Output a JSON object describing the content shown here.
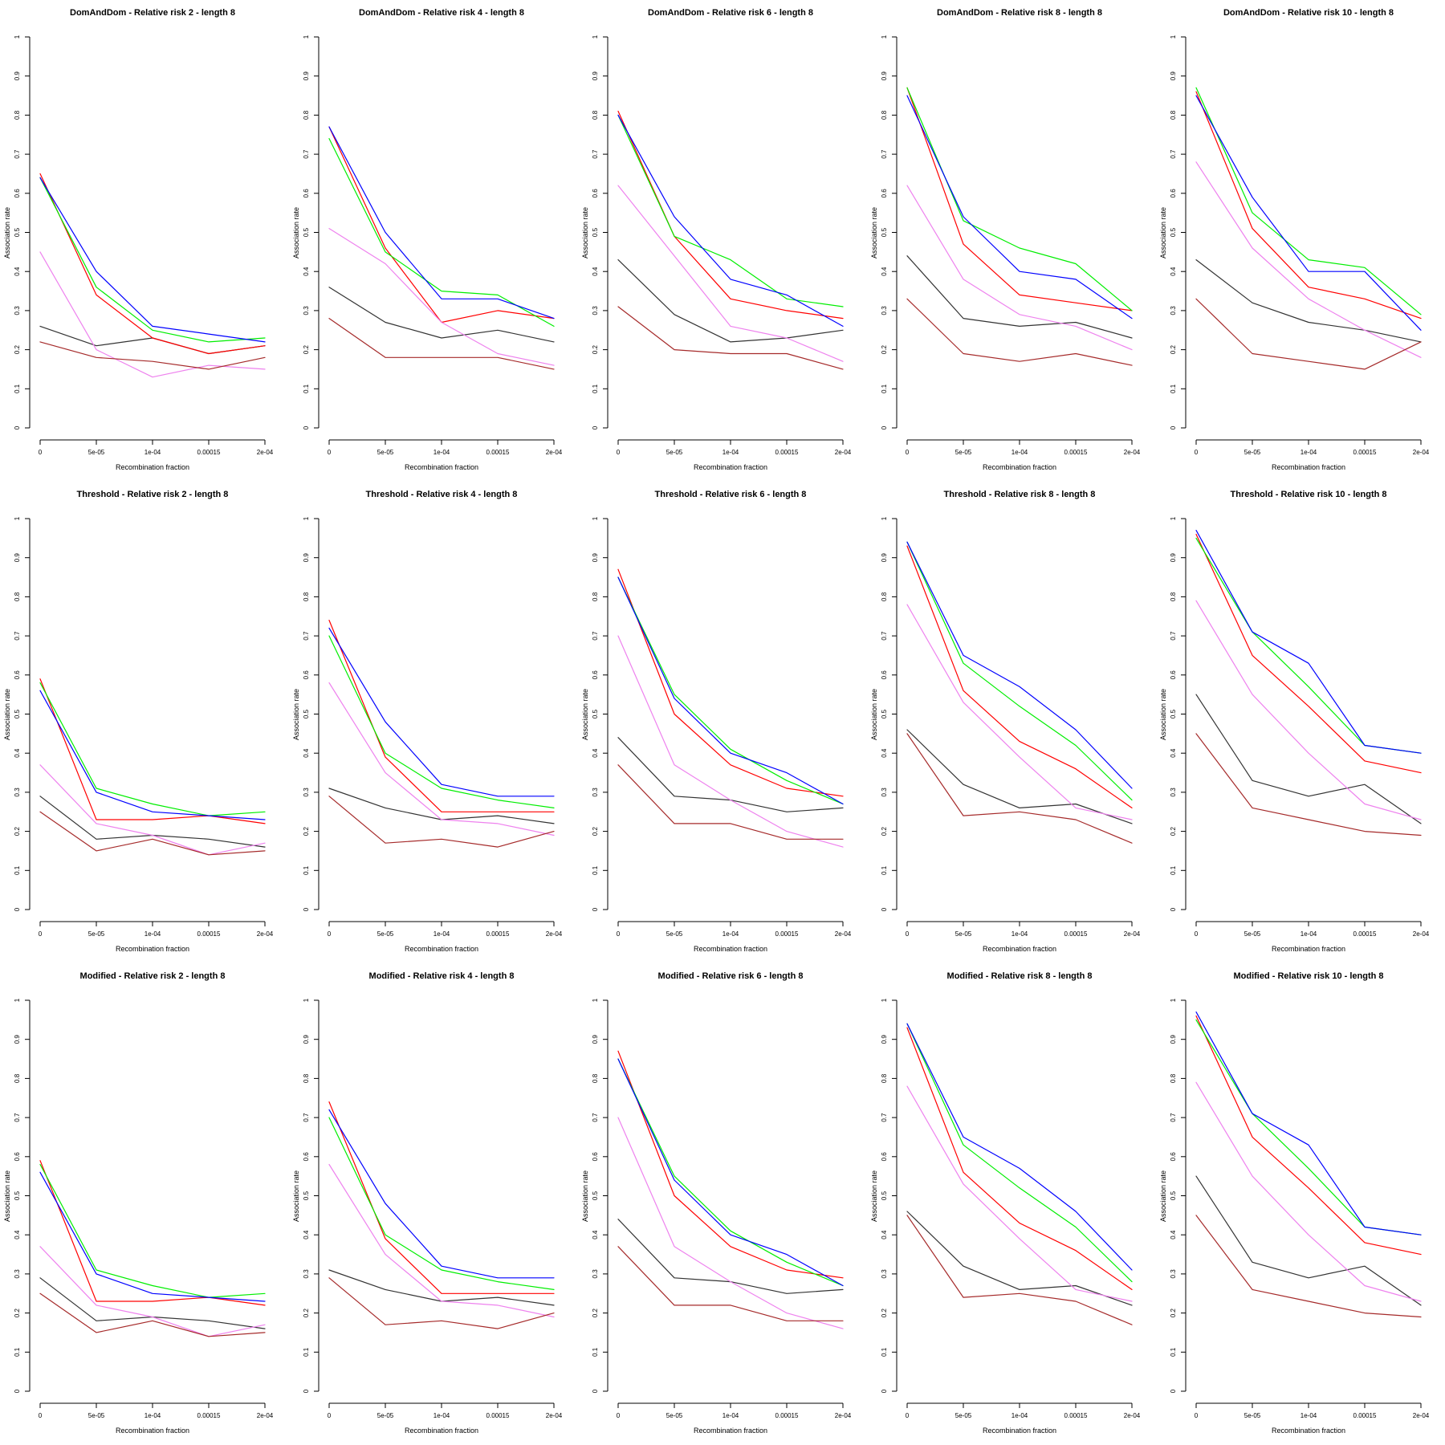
{
  "figure": {
    "xlabel": "Recombination fraction",
    "ylabel": "Association rate",
    "x_values": [
      0,
      5e-05,
      0.0001,
      0.00015,
      0.0002
    ],
    "x_tick_labels": [
      "0",
      "5e-05",
      "1e-04",
      "0.00015",
      "2e-04"
    ],
    "y_tick_labels": [
      "0",
      "0.1",
      "0.2",
      "0.3",
      "0.4",
      "0.5",
      "0.6",
      "0.7",
      "0.8",
      "0.9",
      "1"
    ],
    "ylim": [
      0,
      1
    ],
    "grid": "off",
    "legend": "none",
    "series_order": [
      "black",
      "red",
      "green",
      "blue",
      "violet",
      "brown"
    ],
    "palette": {
      "black": "#333333",
      "red": "#FF0000",
      "green": "#00EE00",
      "blue": "#0000FF",
      "violet": "#EE82EE",
      "brown": "#A52A2A"
    }
  },
  "chart_data": [
    {
      "type": "line",
      "title": "DomAndDom  - Relative risk 2 - length 8",
      "method": "DomAndDom",
      "relative_risk": 2,
      "length": 8,
      "series": {
        "black": [
          0.26,
          0.21,
          0.23,
          0.19,
          0.21
        ],
        "red": [
          0.65,
          0.34,
          0.23,
          0.19,
          0.21
        ],
        "green": [
          0.64,
          0.36,
          0.25,
          0.22,
          0.23
        ],
        "blue": [
          0.64,
          0.4,
          0.26,
          0.24,
          0.22
        ],
        "violet": [
          0.45,
          0.2,
          0.13,
          0.16,
          0.15
        ],
        "brown": [
          0.22,
          0.18,
          0.17,
          0.15,
          0.18
        ]
      }
    },
    {
      "type": "line",
      "title": "DomAndDom  - Relative risk 4 - length 8",
      "method": "DomAndDom",
      "relative_risk": 4,
      "length": 8,
      "series": {
        "black": [
          0.36,
          0.27,
          0.23,
          0.25,
          0.22
        ],
        "red": [
          0.77,
          0.46,
          0.27,
          0.3,
          0.28
        ],
        "green": [
          0.74,
          0.45,
          0.35,
          0.34,
          0.26
        ],
        "blue": [
          0.77,
          0.5,
          0.33,
          0.33,
          0.28
        ],
        "violet": [
          0.51,
          0.42,
          0.27,
          0.19,
          0.16
        ],
        "brown": [
          0.28,
          0.18,
          0.18,
          0.18,
          0.15
        ]
      }
    },
    {
      "type": "line",
      "title": "DomAndDom  - Relative risk 6 - length 8",
      "method": "DomAndDom",
      "relative_risk": 6,
      "length": 8,
      "series": {
        "black": [
          0.43,
          0.29,
          0.22,
          0.23,
          0.25
        ],
        "red": [
          0.81,
          0.49,
          0.33,
          0.3,
          0.28
        ],
        "green": [
          0.8,
          0.49,
          0.43,
          0.33,
          0.31
        ],
        "blue": [
          0.8,
          0.54,
          0.38,
          0.34,
          0.26
        ],
        "violet": [
          0.62,
          0.44,
          0.26,
          0.23,
          0.17
        ],
        "brown": [
          0.31,
          0.2,
          0.19,
          0.19,
          0.15
        ]
      }
    },
    {
      "type": "line",
      "title": "DomAndDom  - Relative risk 8 - length 8",
      "method": "DomAndDom",
      "relative_risk": 8,
      "length": 8,
      "series": {
        "black": [
          0.44,
          0.28,
          0.26,
          0.27,
          0.23
        ],
        "red": [
          0.87,
          0.47,
          0.34,
          0.32,
          0.3
        ],
        "green": [
          0.87,
          0.53,
          0.46,
          0.42,
          0.3
        ],
        "blue": [
          0.85,
          0.54,
          0.4,
          0.38,
          0.28
        ],
        "violet": [
          0.62,
          0.38,
          0.29,
          0.26,
          0.2
        ],
        "brown": [
          0.33,
          0.19,
          0.17,
          0.19,
          0.16
        ]
      }
    },
    {
      "type": "line",
      "title": "DomAndDom  - Relative risk 10 - length 8",
      "method": "DomAndDom",
      "relative_risk": 10,
      "length": 8,
      "series": {
        "black": [
          0.43,
          0.32,
          0.27,
          0.25,
          0.22
        ],
        "red": [
          0.86,
          0.51,
          0.36,
          0.33,
          0.28
        ],
        "green": [
          0.87,
          0.55,
          0.43,
          0.41,
          0.29
        ],
        "blue": [
          0.85,
          0.59,
          0.4,
          0.4,
          0.25
        ],
        "violet": [
          0.68,
          0.46,
          0.33,
          0.25,
          0.18
        ],
        "brown": [
          0.33,
          0.19,
          0.17,
          0.15,
          0.22
        ]
      }
    },
    {
      "type": "line",
      "title": "Threshold  - Relative risk 2 - length 8",
      "method": "Threshold",
      "relative_risk": 2,
      "length": 8,
      "series": {
        "black": [
          0.29,
          0.18,
          0.19,
          0.18,
          0.16
        ],
        "red": [
          0.59,
          0.23,
          0.23,
          0.24,
          0.22
        ],
        "green": [
          0.58,
          0.31,
          0.27,
          0.24,
          0.25
        ],
        "blue": [
          0.56,
          0.3,
          0.25,
          0.24,
          0.23
        ],
        "violet": [
          0.37,
          0.22,
          0.19,
          0.14,
          0.17
        ],
        "brown": [
          0.25,
          0.15,
          0.18,
          0.14,
          0.15
        ]
      }
    },
    {
      "type": "line",
      "title": "Threshold  - Relative risk 4 - length 8",
      "method": "Threshold",
      "relative_risk": 4,
      "length": 8,
      "series": {
        "black": [
          0.31,
          0.26,
          0.23,
          0.24,
          0.22
        ],
        "red": [
          0.74,
          0.39,
          0.25,
          0.25,
          0.25
        ],
        "green": [
          0.7,
          0.4,
          0.31,
          0.28,
          0.26
        ],
        "blue": [
          0.72,
          0.48,
          0.32,
          0.29,
          0.29
        ],
        "violet": [
          0.58,
          0.35,
          0.23,
          0.22,
          0.19
        ],
        "brown": [
          0.29,
          0.17,
          0.18,
          0.16,
          0.2
        ]
      }
    },
    {
      "type": "line",
      "title": "Threshold  - Relative risk 6 - length 8",
      "method": "Threshold",
      "relative_risk": 6,
      "length": 8,
      "series": {
        "black": [
          0.44,
          0.29,
          0.28,
          0.25,
          0.26
        ],
        "red": [
          0.87,
          0.5,
          0.37,
          0.31,
          0.29
        ],
        "green": [
          0.85,
          0.55,
          0.41,
          0.33,
          0.27
        ],
        "blue": [
          0.85,
          0.54,
          0.4,
          0.35,
          0.27
        ],
        "violet": [
          0.7,
          0.37,
          0.28,
          0.2,
          0.16
        ],
        "brown": [
          0.37,
          0.22,
          0.22,
          0.18,
          0.18
        ]
      }
    },
    {
      "type": "line",
      "title": "Threshold  - Relative risk 8 - length 8",
      "method": "Threshold",
      "relative_risk": 8,
      "length": 8,
      "series": {
        "black": [
          0.46,
          0.32,
          0.26,
          0.27,
          0.22
        ],
        "red": [
          0.93,
          0.56,
          0.43,
          0.36,
          0.26
        ],
        "green": [
          0.94,
          0.63,
          0.52,
          0.42,
          0.28
        ],
        "blue": [
          0.94,
          0.65,
          0.57,
          0.46,
          0.31
        ],
        "violet": [
          0.78,
          0.53,
          0.39,
          0.26,
          0.23
        ],
        "brown": [
          0.45,
          0.24,
          0.25,
          0.23,
          0.17
        ]
      }
    },
    {
      "type": "line",
      "title": "Threshold  - Relative risk 10 - length 8",
      "method": "Threshold",
      "relative_risk": 10,
      "length": 8,
      "series": {
        "black": [
          0.55,
          0.33,
          0.29,
          0.32,
          0.22
        ],
        "red": [
          0.96,
          0.65,
          0.52,
          0.38,
          0.35
        ],
        "green": [
          0.95,
          0.71,
          0.57,
          0.42,
          0.4
        ],
        "blue": [
          0.97,
          0.71,
          0.63,
          0.42,
          0.4
        ],
        "violet": [
          0.79,
          0.55,
          0.4,
          0.27,
          0.23
        ],
        "brown": [
          0.45,
          0.26,
          0.23,
          0.2,
          0.19
        ]
      }
    },
    {
      "type": "line",
      "title": "Modified  - Relative risk 2 - length 8",
      "method": "Modified",
      "relative_risk": 2,
      "length": 8,
      "series": {
        "black": [
          0.29,
          0.18,
          0.19,
          0.18,
          0.16
        ],
        "red": [
          0.59,
          0.23,
          0.23,
          0.24,
          0.22
        ],
        "green": [
          0.58,
          0.31,
          0.27,
          0.24,
          0.25
        ],
        "blue": [
          0.56,
          0.3,
          0.25,
          0.24,
          0.23
        ],
        "violet": [
          0.37,
          0.22,
          0.19,
          0.14,
          0.17
        ],
        "brown": [
          0.25,
          0.15,
          0.18,
          0.14,
          0.15
        ]
      }
    },
    {
      "type": "line",
      "title": "Modified  - Relative risk 4 - length 8",
      "method": "Modified",
      "relative_risk": 4,
      "length": 8,
      "series": {
        "black": [
          0.31,
          0.26,
          0.23,
          0.24,
          0.22
        ],
        "red": [
          0.74,
          0.39,
          0.25,
          0.25,
          0.25
        ],
        "green": [
          0.7,
          0.4,
          0.31,
          0.28,
          0.26
        ],
        "blue": [
          0.72,
          0.48,
          0.32,
          0.29,
          0.29
        ],
        "violet": [
          0.58,
          0.35,
          0.23,
          0.22,
          0.19
        ],
        "brown": [
          0.29,
          0.17,
          0.18,
          0.16,
          0.2
        ]
      }
    },
    {
      "type": "line",
      "title": "Modified  - Relative risk 6 - length 8",
      "method": "Modified",
      "relative_risk": 6,
      "length": 8,
      "series": {
        "black": [
          0.44,
          0.29,
          0.28,
          0.25,
          0.26
        ],
        "red": [
          0.87,
          0.5,
          0.37,
          0.31,
          0.29
        ],
        "green": [
          0.85,
          0.55,
          0.41,
          0.33,
          0.27
        ],
        "blue": [
          0.85,
          0.54,
          0.4,
          0.35,
          0.27
        ],
        "violet": [
          0.7,
          0.37,
          0.28,
          0.2,
          0.16
        ],
        "brown": [
          0.37,
          0.22,
          0.22,
          0.18,
          0.18
        ]
      }
    },
    {
      "type": "line",
      "title": "Modified  - Relative risk 8 - length 8",
      "method": "Modified",
      "relative_risk": 8,
      "length": 8,
      "series": {
        "black": [
          0.46,
          0.32,
          0.26,
          0.27,
          0.22
        ],
        "red": [
          0.93,
          0.56,
          0.43,
          0.36,
          0.26
        ],
        "green": [
          0.94,
          0.63,
          0.52,
          0.42,
          0.28
        ],
        "blue": [
          0.94,
          0.65,
          0.57,
          0.46,
          0.31
        ],
        "violet": [
          0.78,
          0.53,
          0.39,
          0.26,
          0.23
        ],
        "brown": [
          0.45,
          0.24,
          0.25,
          0.23,
          0.17
        ]
      }
    },
    {
      "type": "line",
      "title": "Modified  - Relative risk 10 - length 8",
      "method": "Modified",
      "relative_risk": 10,
      "length": 8,
      "series": {
        "black": [
          0.55,
          0.33,
          0.29,
          0.32,
          0.22
        ],
        "red": [
          0.96,
          0.65,
          0.52,
          0.38,
          0.35
        ],
        "green": [
          0.95,
          0.71,
          0.57,
          0.42,
          0.4
        ],
        "blue": [
          0.97,
          0.71,
          0.63,
          0.42,
          0.4
        ],
        "violet": [
          0.79,
          0.55,
          0.4,
          0.27,
          0.23
        ],
        "brown": [
          0.45,
          0.26,
          0.23,
          0.2,
          0.19
        ]
      }
    }
  ]
}
